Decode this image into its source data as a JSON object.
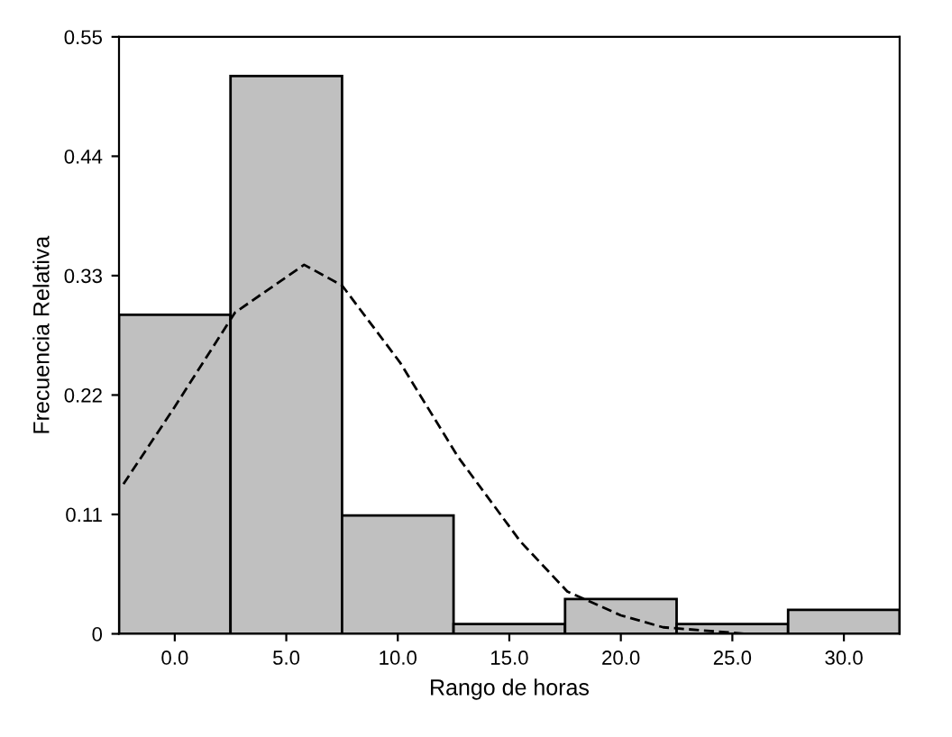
{
  "chart_data": {
    "type": "histogram",
    "xlabel": "Rango de horas",
    "ylabel": "Frecuencia Relativa",
    "bins": [
      -2.5,
      2.5,
      7.5,
      12.5,
      17.5,
      22.5,
      27.5,
      32.5
    ],
    "values": [
      0.294,
      0.514,
      0.109,
      0.009,
      0.032,
      0.009,
      0.022
    ],
    "color": "#c0c0c0",
    "series": [
      {
        "type": "line",
        "line_style": "dashed",
        "color": "#000000",
        "x": [
          -2.3,
          -0.1,
          2.7,
          5.8,
          7.5,
          10.1,
          12.7,
          15.5,
          17.6,
          20.0,
          21.9,
          25.6
        ],
        "values": [
          0.138,
          0.206,
          0.296,
          0.34,
          0.321,
          0.25,
          0.163,
          0.085,
          0.039,
          0.017,
          0.006,
          0.0
        ]
      }
    ],
    "xlim": [
      -2.5,
      32.5
    ],
    "ylim": [
      0,
      0.55
    ],
    "xticks": [
      {
        "value": 0,
        "label": "0.0"
      },
      {
        "value": 5,
        "label": "5.0"
      },
      {
        "value": 10,
        "label": "10.0"
      },
      {
        "value": 15,
        "label": "15.0"
      },
      {
        "value": 20,
        "label": "20.0"
      },
      {
        "value": 25,
        "label": "25.0"
      },
      {
        "value": 30,
        "label": "30.0"
      }
    ],
    "yticks": [
      0,
      0.11,
      0.22,
      0.33,
      0.44,
      0.55
    ],
    "grid": false
  }
}
